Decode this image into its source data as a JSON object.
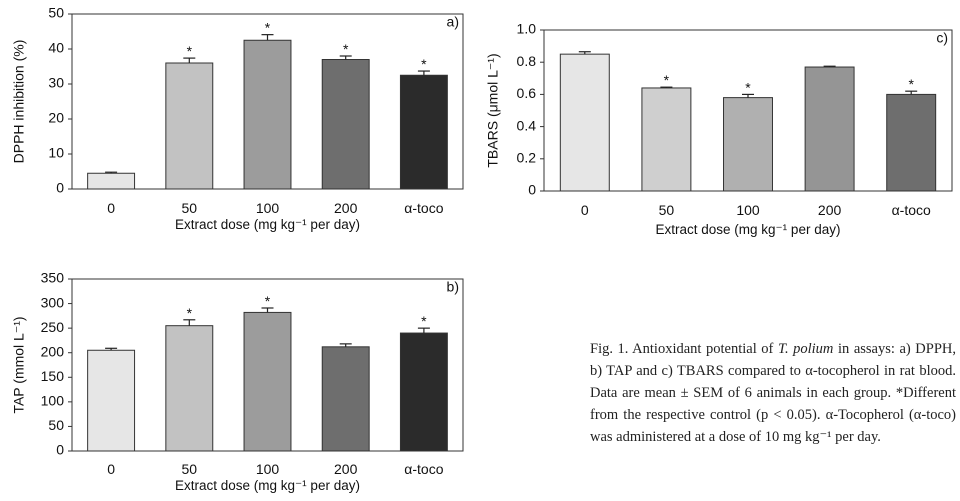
{
  "chart_data": [
    {
      "type": "bar",
      "panel_label": "a)",
      "categories": [
        "0",
        "50",
        "100",
        "200",
        "α-toco"
      ],
      "values": [
        4.5,
        36,
        42.5,
        37,
        32.5
      ],
      "errors": [
        0.3,
        1.4,
        1.6,
        1.0,
        1.2
      ],
      "significant": [
        false,
        true,
        true,
        true,
        true
      ],
      "sig_marker": "*",
      "colors": [
        "#e6e6e6",
        "#c2c2c2",
        "#9c9c9c",
        "#6e6e6e",
        "#2b2b2b"
      ],
      "ylabel": "DPPH inhibition (%)",
      "xlabel": "Extract dose (mg kg⁻¹ per day)",
      "yticks": [
        0,
        10,
        20,
        30,
        40,
        50
      ],
      "ylim": [
        0,
        50
      ],
      "grid": false
    },
    {
      "type": "bar",
      "panel_label": "b)",
      "categories": [
        "0",
        "50",
        "100",
        "200",
        "α-toco"
      ],
      "values": [
        205,
        255,
        282,
        212,
        240
      ],
      "errors": [
        4,
        12,
        9,
        6,
        10
      ],
      "significant": [
        false,
        true,
        true,
        false,
        true
      ],
      "sig_marker": "*",
      "colors": [
        "#e6e6e6",
        "#c2c2c2",
        "#9c9c9c",
        "#6e6e6e",
        "#2b2b2b"
      ],
      "ylabel": "TAP (mmol L⁻¹)",
      "xlabel": "Extract dose (mg kg⁻¹ per day)",
      "yticks": [
        0,
        50,
        100,
        150,
        200,
        250,
        300,
        350
      ],
      "ylim": [
        0,
        350
      ],
      "grid": false
    },
    {
      "type": "bar",
      "panel_label": "c)",
      "categories": [
        "0",
        "50",
        "100",
        "200",
        "α-toco"
      ],
      "values": [
        0.85,
        0.64,
        0.58,
        0.77,
        0.6
      ],
      "errors": [
        0.015,
        0.005,
        0.02,
        0.005,
        0.02
      ],
      "significant": [
        false,
        true,
        true,
        false,
        true
      ],
      "sig_marker": "*",
      "colors": [
        "#e6e6e6",
        "#cfcfcf",
        "#b0b0b0",
        "#959595",
        "#6e6e6e"
      ],
      "ylabel": "TBARS (μmol L⁻¹)",
      "xlabel": "Extract dose (mg kg⁻¹ per day)",
      "yticks": [
        "0",
        "0.2",
        "0.4",
        "0.6",
        "0.8",
        "1.0"
      ],
      "ylim": [
        0,
        1.0
      ],
      "grid": false
    }
  ],
  "caption": {
    "prefix": "Fig. 1. Antioxidant potential of ",
    "species": "T. polium",
    "body": " in assays: a) DPPH, b) TAP and c) TBARS compared to α-tocopherol in rat blood. Data are mean ± SEM of 6 animals in each group. *Different from the respective control (p < 0.05). α-Tocopherol (α-toco) was administered at a dose of 10 mg kg⁻¹ per day."
  }
}
